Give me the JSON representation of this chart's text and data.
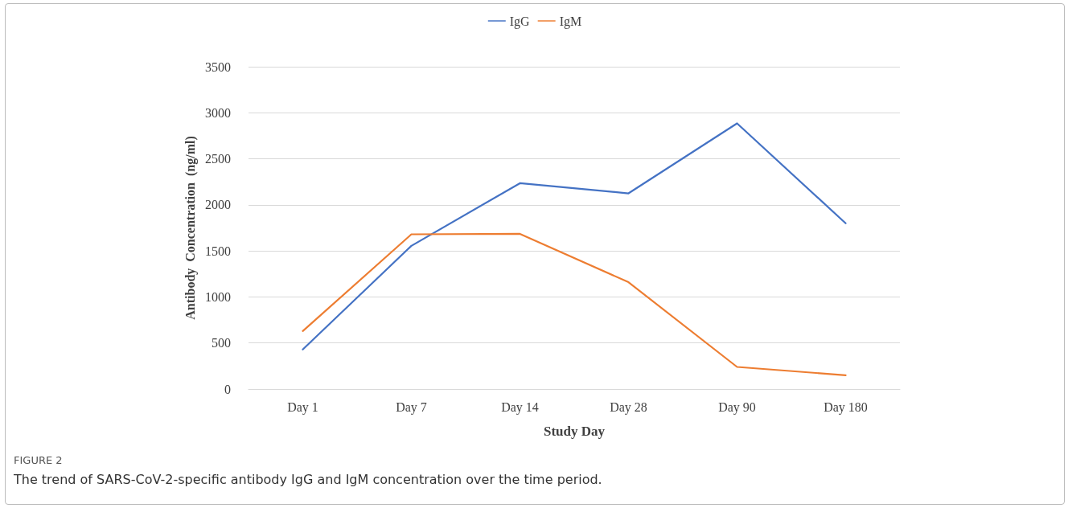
{
  "chart_data": {
    "type": "line",
    "xlabel": "Study Day",
    "ylabel": "Antibody  Concentration  (ng/ml)",
    "categories": [
      "Day 1",
      "Day 7",
      "Day 14",
      "Day 28",
      "Day 90",
      "Day 180"
    ],
    "series": [
      {
        "name": "IgG",
        "color": "#4472c4",
        "values": [
          430,
          1555,
          2235,
          2125,
          2885,
          1800
        ]
      },
      {
        "name": "IgM",
        "color": "#ed7d31",
        "values": [
          630,
          1680,
          1685,
          1160,
          240,
          150
        ]
      }
    ],
    "ylim": [
      0,
      3500
    ],
    "yticks": [
      0,
      500,
      1000,
      1500,
      2000,
      2500,
      3000,
      3500
    ],
    "grid": "y",
    "legend": "top",
    "marker": "none",
    "line_style": "solid",
    "annotations": [
      "FIGURE 2",
      "The trend of SARS-CoV-2-specific antibody IgG and IgM concentration over the time period."
    ]
  }
}
